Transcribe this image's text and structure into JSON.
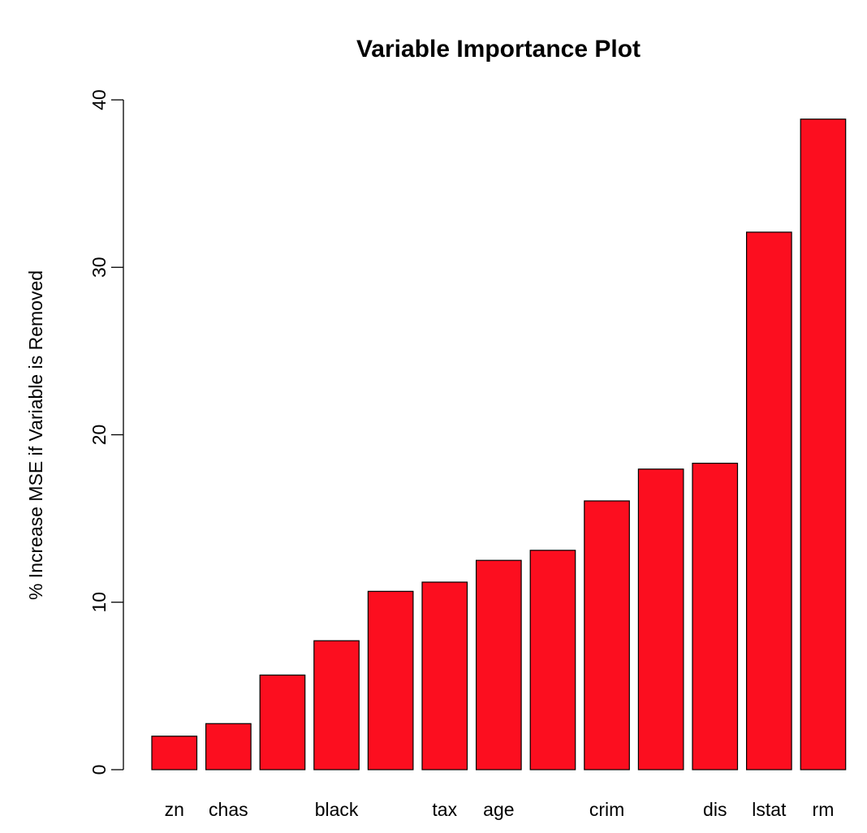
{
  "chart_data": {
    "type": "bar",
    "title": "Variable Importance Plot",
    "xlabel": "",
    "ylabel": "% Increase MSE if Variable is Removed",
    "categories": [
      "zn",
      "chas",
      "",
      "black",
      "",
      "tax",
      "age",
      "",
      "crim",
      "",
      "dis",
      "lstat",
      "rm"
    ],
    "values": [
      2.0,
      2.75,
      5.65,
      7.7,
      10.65,
      11.2,
      12.5,
      13.1,
      16.05,
      17.95,
      18.3,
      32.1,
      38.85
    ],
    "ylim": [
      0,
      40
    ],
    "yticks": [
      0,
      10,
      20,
      30,
      40
    ],
    "bar_color": "#fc0e1f",
    "bar_stroke": "#000000",
    "grid": false
  }
}
